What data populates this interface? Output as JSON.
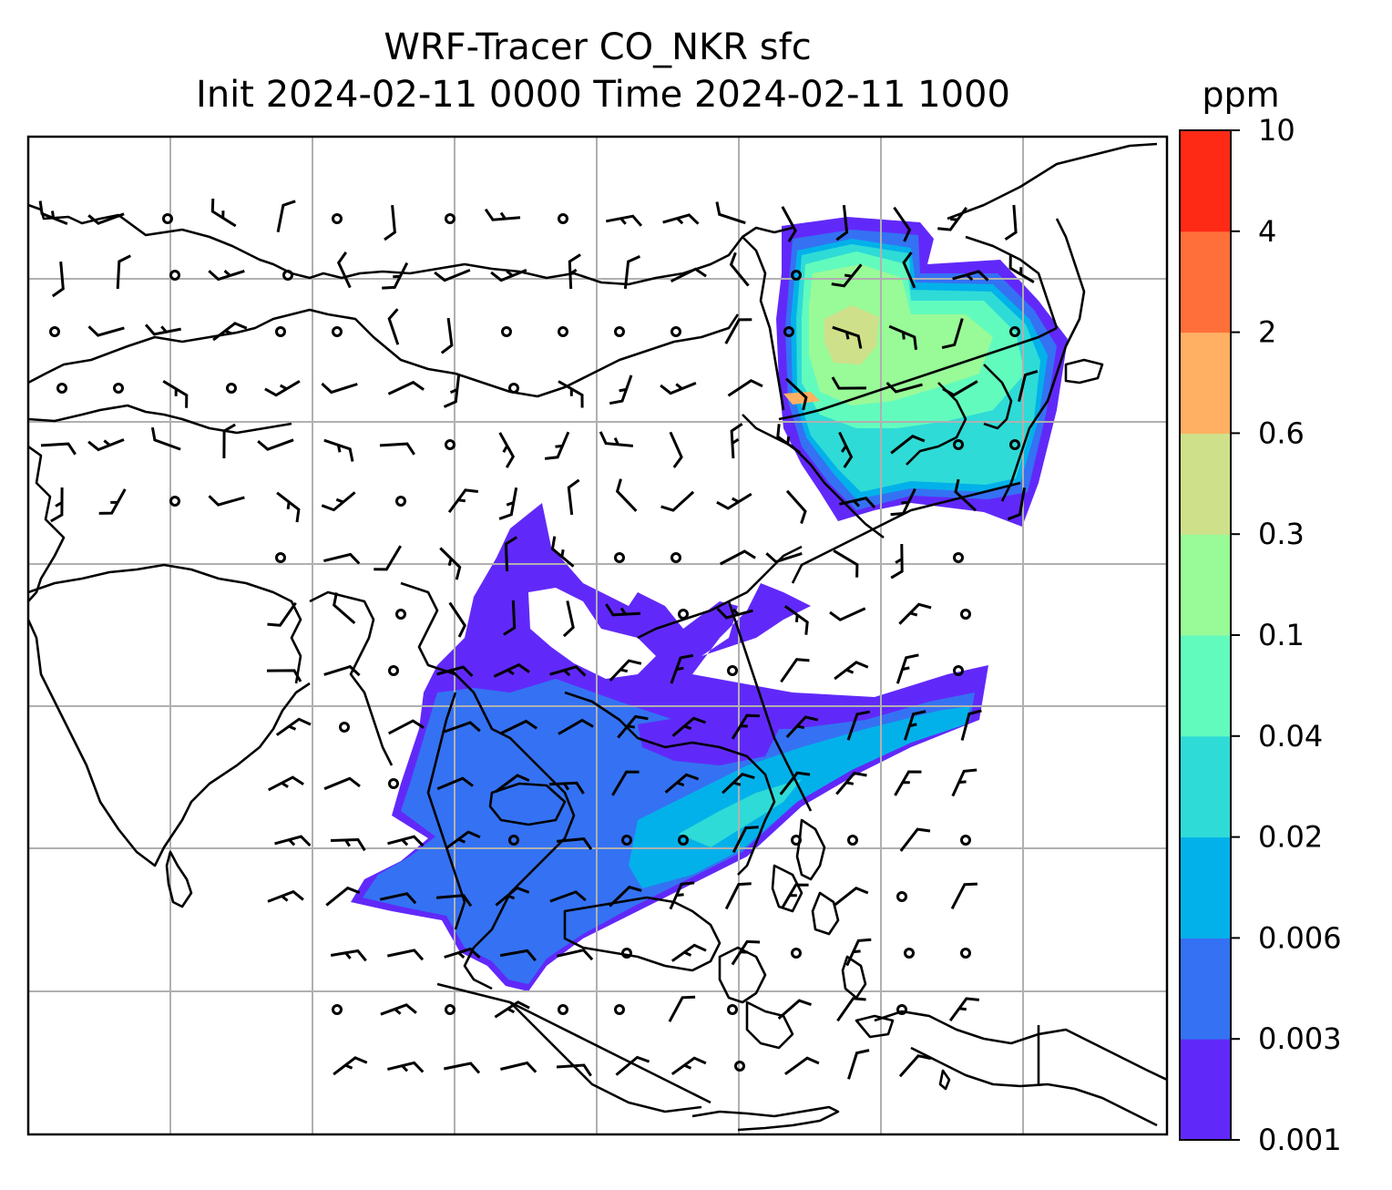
{
  "title_line1": "WRF-Tracer CO_NKR sfc",
  "title_line2": "Init 2024-02-11 0000 Time 2024-02-11 1000",
  "colorbar": {
    "unit": "ppm",
    "ticks": [
      "0.001",
      "0.003",
      "0.006",
      "0.02",
      "0.04",
      "0.1",
      "0.3",
      "0.6",
      "2",
      "4",
      "10"
    ],
    "colors": [
      "#6129f9",
      "#3472f3",
      "#03b1ea",
      "#2fdbd6",
      "#62fbbe",
      "#99fa98",
      "#cfe08a",
      "#ffb062",
      "#ff6f3a",
      "#ff2a16"
    ]
  },
  "chart_data": {
    "type": "heatmap",
    "variable": "CO_NKR surface tracer concentration with wind barbs",
    "units": "ppm",
    "levels": [
      0.001,
      0.003,
      0.006,
      0.02,
      0.04,
      0.1,
      0.3,
      0.6,
      2,
      4,
      10
    ],
    "plumes": [
      {
        "name": "northeast",
        "peak_level": "0.3-0.6"
      },
      {
        "name": "southeast-asia",
        "peak_level": "0.02-0.04"
      }
    ]
  }
}
